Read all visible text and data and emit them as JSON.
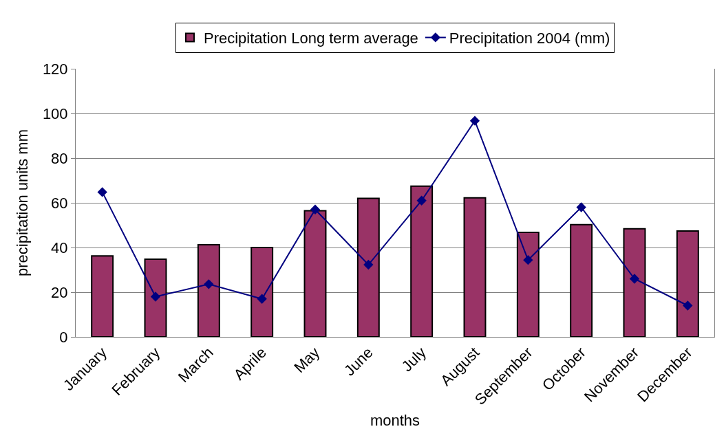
{
  "chart_data": {
    "type": "bar",
    "xlabel": "months",
    "ylabel": "precipitation units mm",
    "categories": [
      "January",
      "February",
      "March",
      "Aprile",
      "May",
      "June",
      "July",
      "August",
      "September",
      "October",
      "November",
      "December"
    ],
    "series": [
      {
        "name": "Precipitation Long term average",
        "color": "#993366",
        "values": [
          36.2,
          34.8,
          41.2,
          40,
          56.5,
          62,
          67.5,
          62.2,
          46.8,
          50.2,
          48.4,
          47.4
        ]
      },
      {
        "name": "Precipitation 2004 (mm)",
        "type": "line",
        "color": "#000080",
        "marker": "diamond",
        "values": [
          64.8,
          18,
          23.6,
          17,
          57,
          32.3,
          61,
          96.7,
          34.4,
          58,
          26,
          14
        ]
      }
    ],
    "ylim": [
      0,
      120
    ],
    "yticks": [
      0,
      20,
      40,
      60,
      80,
      100,
      120
    ],
    "grid": "y",
    "legend": "top"
  }
}
